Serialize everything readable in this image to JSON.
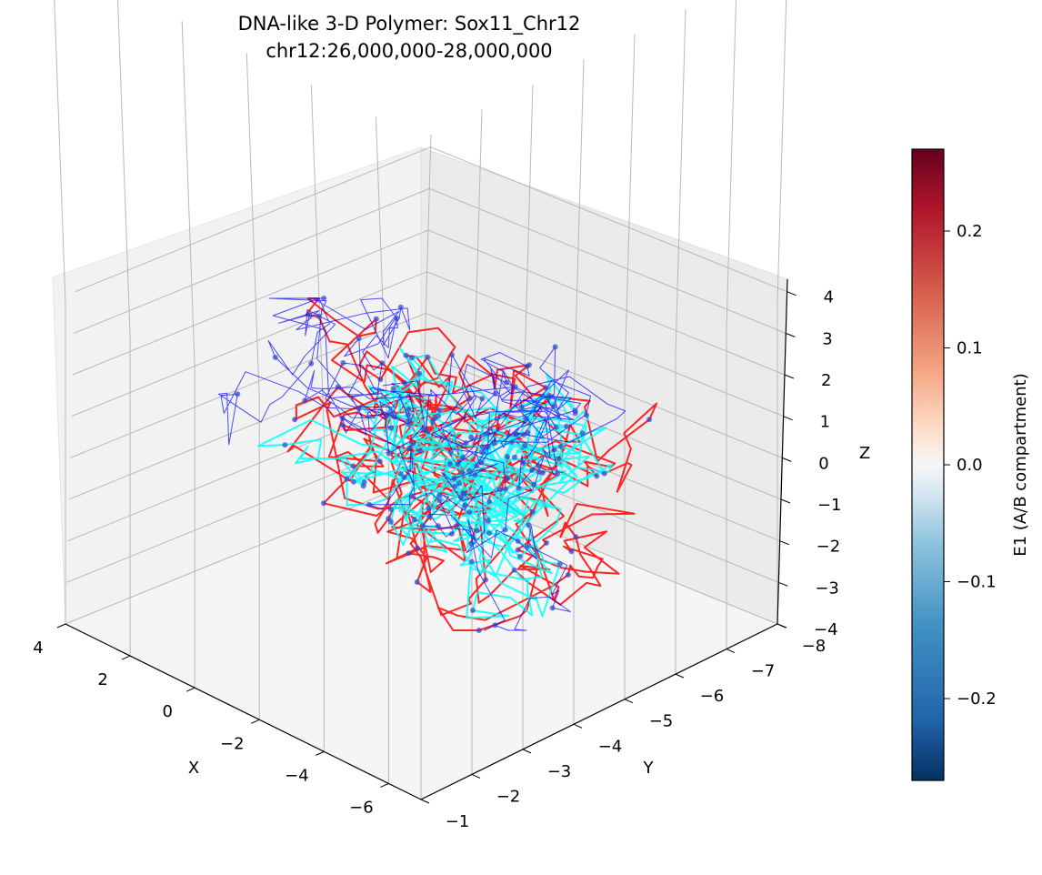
{
  "chart_data": {
    "type": "3d-line",
    "title": "DNA-like 3-D Polymer: Sox11_Chr12",
    "subtitle": "chr12:26,000,000-28,000,000",
    "xlabel": "X",
    "ylabel": "Y",
    "zlabel": "Z",
    "x_ticks": [
      "4",
      "2",
      "0",
      "−2",
      "−4",
      "−6"
    ],
    "y_ticks": [
      "−1",
      "−2",
      "−3",
      "−4",
      "−5",
      "−6",
      "−7",
      "−8"
    ],
    "z_ticks": [
      "−4",
      "−3",
      "−2",
      "−1",
      "0",
      "1",
      "2",
      "3",
      "4"
    ],
    "xlim": [
      4,
      -7
    ],
    "ylim": [
      -1,
      -8
    ],
    "zlim": [
      -4,
      4.3
    ],
    "grid": true,
    "strand_colors": [
      "#ff0000",
      "#00ffff",
      "#0000ff"
    ],
    "colorbar": {
      "label": "E1 (A/B compartment)",
      "ticks": [
        "0.2",
        "0.1",
        "0.0",
        "−0.1",
        "−0.2"
      ],
      "range": [
        -0.27,
        0.27
      ],
      "colormap": "RdBu_r"
    }
  }
}
